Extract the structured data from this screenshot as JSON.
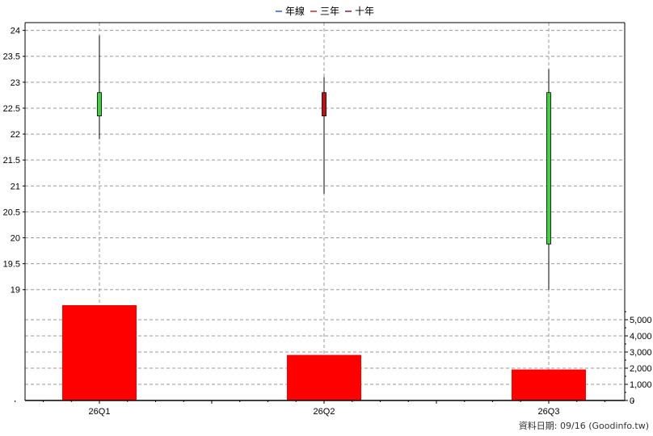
{
  "chart_data": {
    "type": "candlestick+bar",
    "legend": [
      {
        "label": "年線",
        "color": "#1f5fd6"
      },
      {
        "label": "三年",
        "color": "#d62020"
      },
      {
        "label": "十年",
        "color": "#7a1f5a"
      }
    ],
    "categories": [
      "26Q1",
      "26Q2",
      "26Q3"
    ],
    "price_axis": {
      "ylim": [
        18.7,
        24.15
      ],
      "ticks": [
        "19",
        "19.5",
        "20",
        "20.5",
        "21",
        "21.5",
        "22",
        "22.5",
        "23",
        "23.5",
        "24"
      ],
      "grid": true
    },
    "candles": [
      {
        "open": 22.35,
        "close": 22.8,
        "high": 23.9,
        "low": 21.9,
        "color": "#40d040"
      },
      {
        "open": 22.8,
        "close": 22.35,
        "high": 23.1,
        "low": 20.85,
        "color": "#c01010"
      },
      {
        "open": 19.88,
        "close": 22.8,
        "high": 23.25,
        "low": 19.0,
        "color": "#40d040"
      }
    ],
    "volume_axis": {
      "ylim": [
        0,
        5900
      ],
      "ticks": [
        "0",
        "1,000",
        "2,000",
        "3,000",
        "4,000",
        "5,000"
      ],
      "grid": true
    },
    "volumes": [
      5950,
      2820,
      1920
    ],
    "volume_color": "#ff0000"
  },
  "footer": {
    "date_label": "資料日期: 09/16  (Goodinfo.tw)"
  }
}
